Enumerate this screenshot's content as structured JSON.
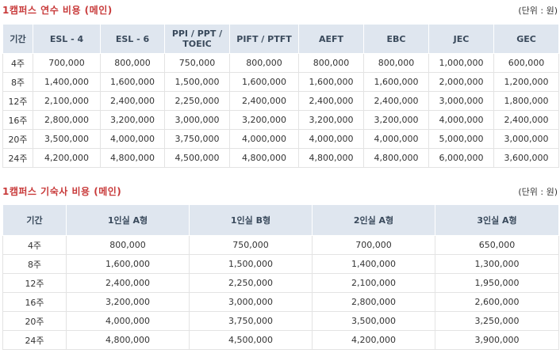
{
  "tuition": {
    "title": "1캠퍼스 연수 비용 (메인)",
    "unit": "(단위 : 원)",
    "headers": [
      "기간",
      "ESL - 4",
      "ESL - 6",
      "PPI / PPT / TOEIC",
      "PIFT / PTFT",
      "AEFT",
      "EBC",
      "JEC",
      "GEC"
    ],
    "rows": [
      [
        "4주",
        "700,000",
        "800,000",
        "750,000",
        "800,000",
        "800,000",
        "800,000",
        "1,000,000",
        "600,000"
      ],
      [
        "8주",
        "1,400,000",
        "1,600,000",
        "1,500,000",
        "1,600,000",
        "1,600,000",
        "1,600,000",
        "2,000,000",
        "1,200,000"
      ],
      [
        "12주",
        "2,100,000",
        "2,400,000",
        "2,250,000",
        "2,400,000",
        "2,400,000",
        "2,400,000",
        "3,000,000",
        "1,800,000"
      ],
      [
        "16주",
        "2,800,000",
        "3,200,000",
        "3,000,000",
        "3,200,000",
        "3,200,000",
        "3,200,000",
        "4,000,000",
        "2,400,000"
      ],
      [
        "20주",
        "3,500,000",
        "4,000,000",
        "3,750,000",
        "4,000,000",
        "4,000,000",
        "4,000,000",
        "5,000,000",
        "3,000,000"
      ],
      [
        "24주",
        "4,200,000",
        "4,800,000",
        "4,500,000",
        "4,800,000",
        "4,800,000",
        "4,800,000",
        "6,000,000",
        "3,600,000"
      ]
    ]
  },
  "dormitory": {
    "title": "1캠퍼스 기숙사 비용 (메인)",
    "unit": "(단위 : 원)",
    "headers": [
      "기간",
      "1인실 A형",
      "1인실 B형",
      "2인실 A형",
      "3인실 A형"
    ],
    "rows": [
      [
        "4주",
        "800,000",
        "750,000",
        "700,000",
        "650,000"
      ],
      [
        "8주",
        "1,600,000",
        "1,500,000",
        "1,400,000",
        "1,300,000"
      ],
      [
        "12주",
        "2,400,000",
        "2,250,000",
        "2,100,000",
        "1,950,000"
      ],
      [
        "16주",
        "3,200,000",
        "3,000,000",
        "2,800,000",
        "2,600,000"
      ],
      [
        "20주",
        "4,000,000",
        "3,750,000",
        "3,500,000",
        "3,250,000"
      ],
      [
        "24주",
        "4,800,000",
        "4,500,000",
        "4,200,000",
        "3,900,000"
      ]
    ]
  }
}
